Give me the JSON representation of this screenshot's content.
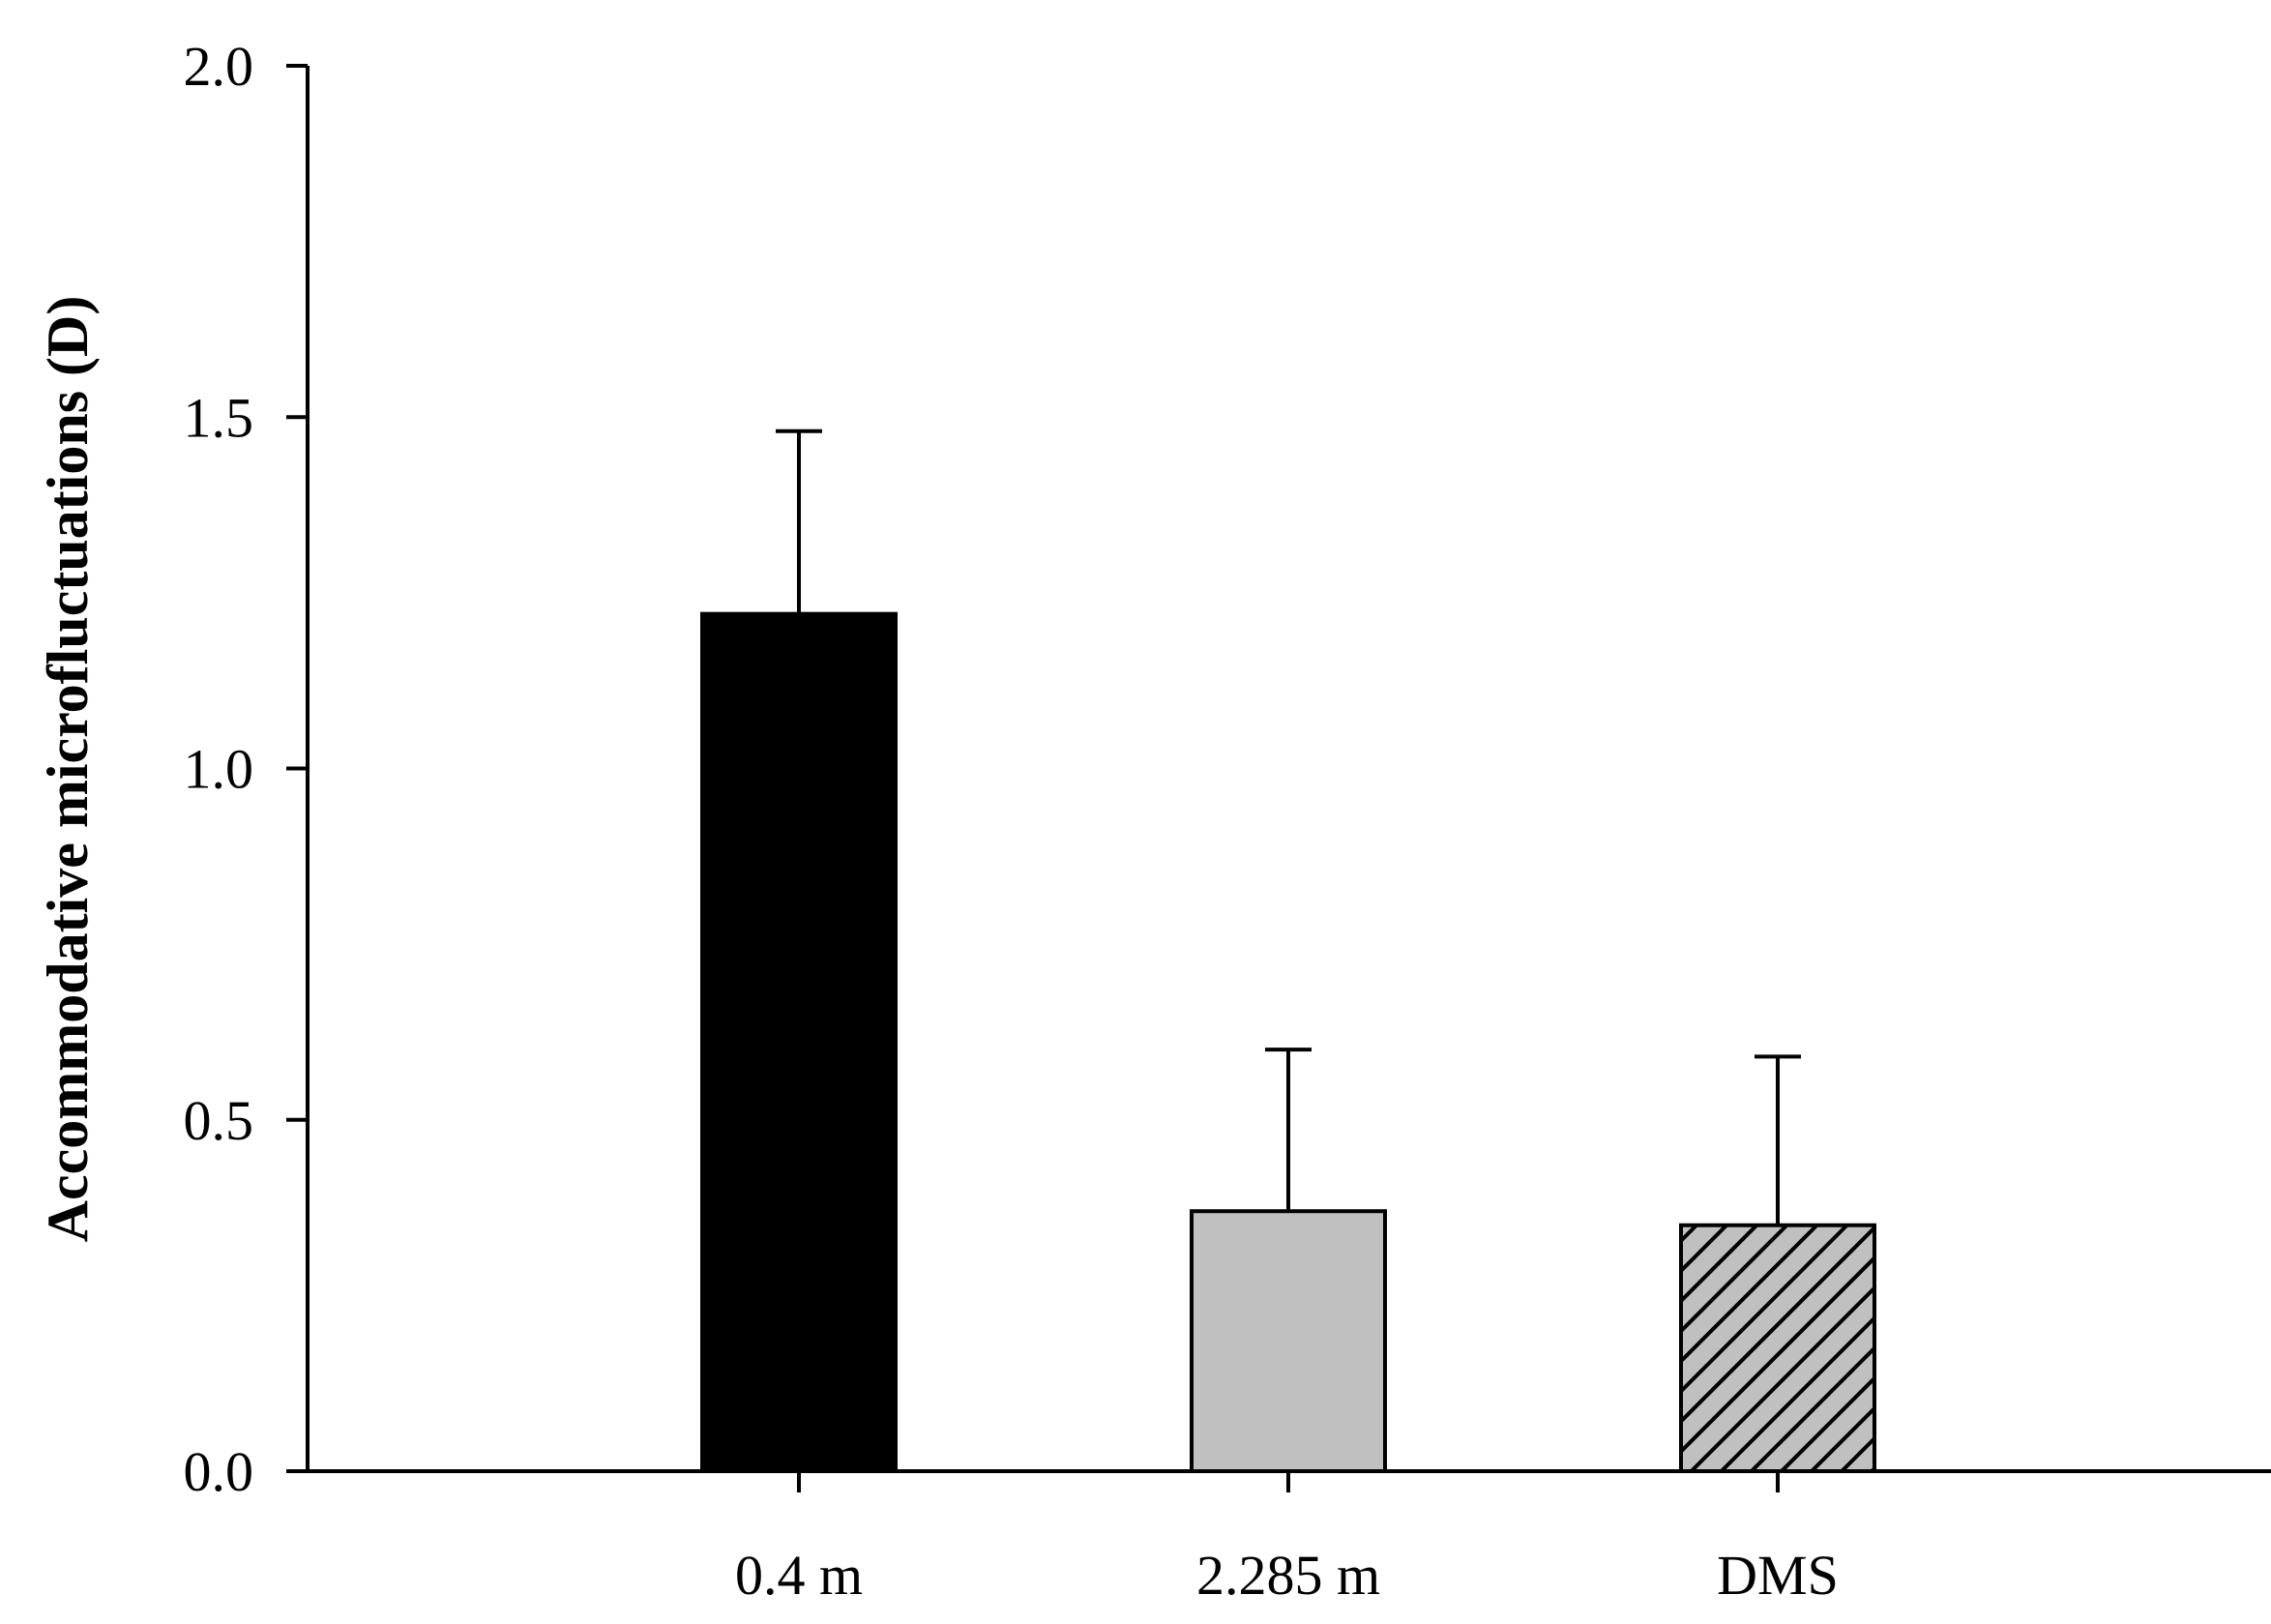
{
  "chart_data": {
    "type": "bar",
    "title": "",
    "xlabel": "",
    "ylabel": "Accommodative microfluctuations (D)",
    "categories": [
      "0.4 m",
      "2.285 m",
      "DMS"
    ],
    "values": [
      1.22,
      0.37,
      0.35
    ],
    "error_plus": [
      0.26,
      0.23,
      0.24
    ],
    "bar_fills": [
      "#000000",
      "#c0c0c0",
      "hatch"
    ],
    "hatch_background": "#c0c0c0",
    "ylim": [
      0,
      2.0
    ],
    "yticks": [
      0.0,
      0.5,
      1.0,
      1.5,
      2.0
    ],
    "ytick_labels": [
      "0.0",
      "0.5",
      "1.0",
      "1.5",
      "2.0"
    ],
    "grid": false,
    "legend": "none"
  }
}
